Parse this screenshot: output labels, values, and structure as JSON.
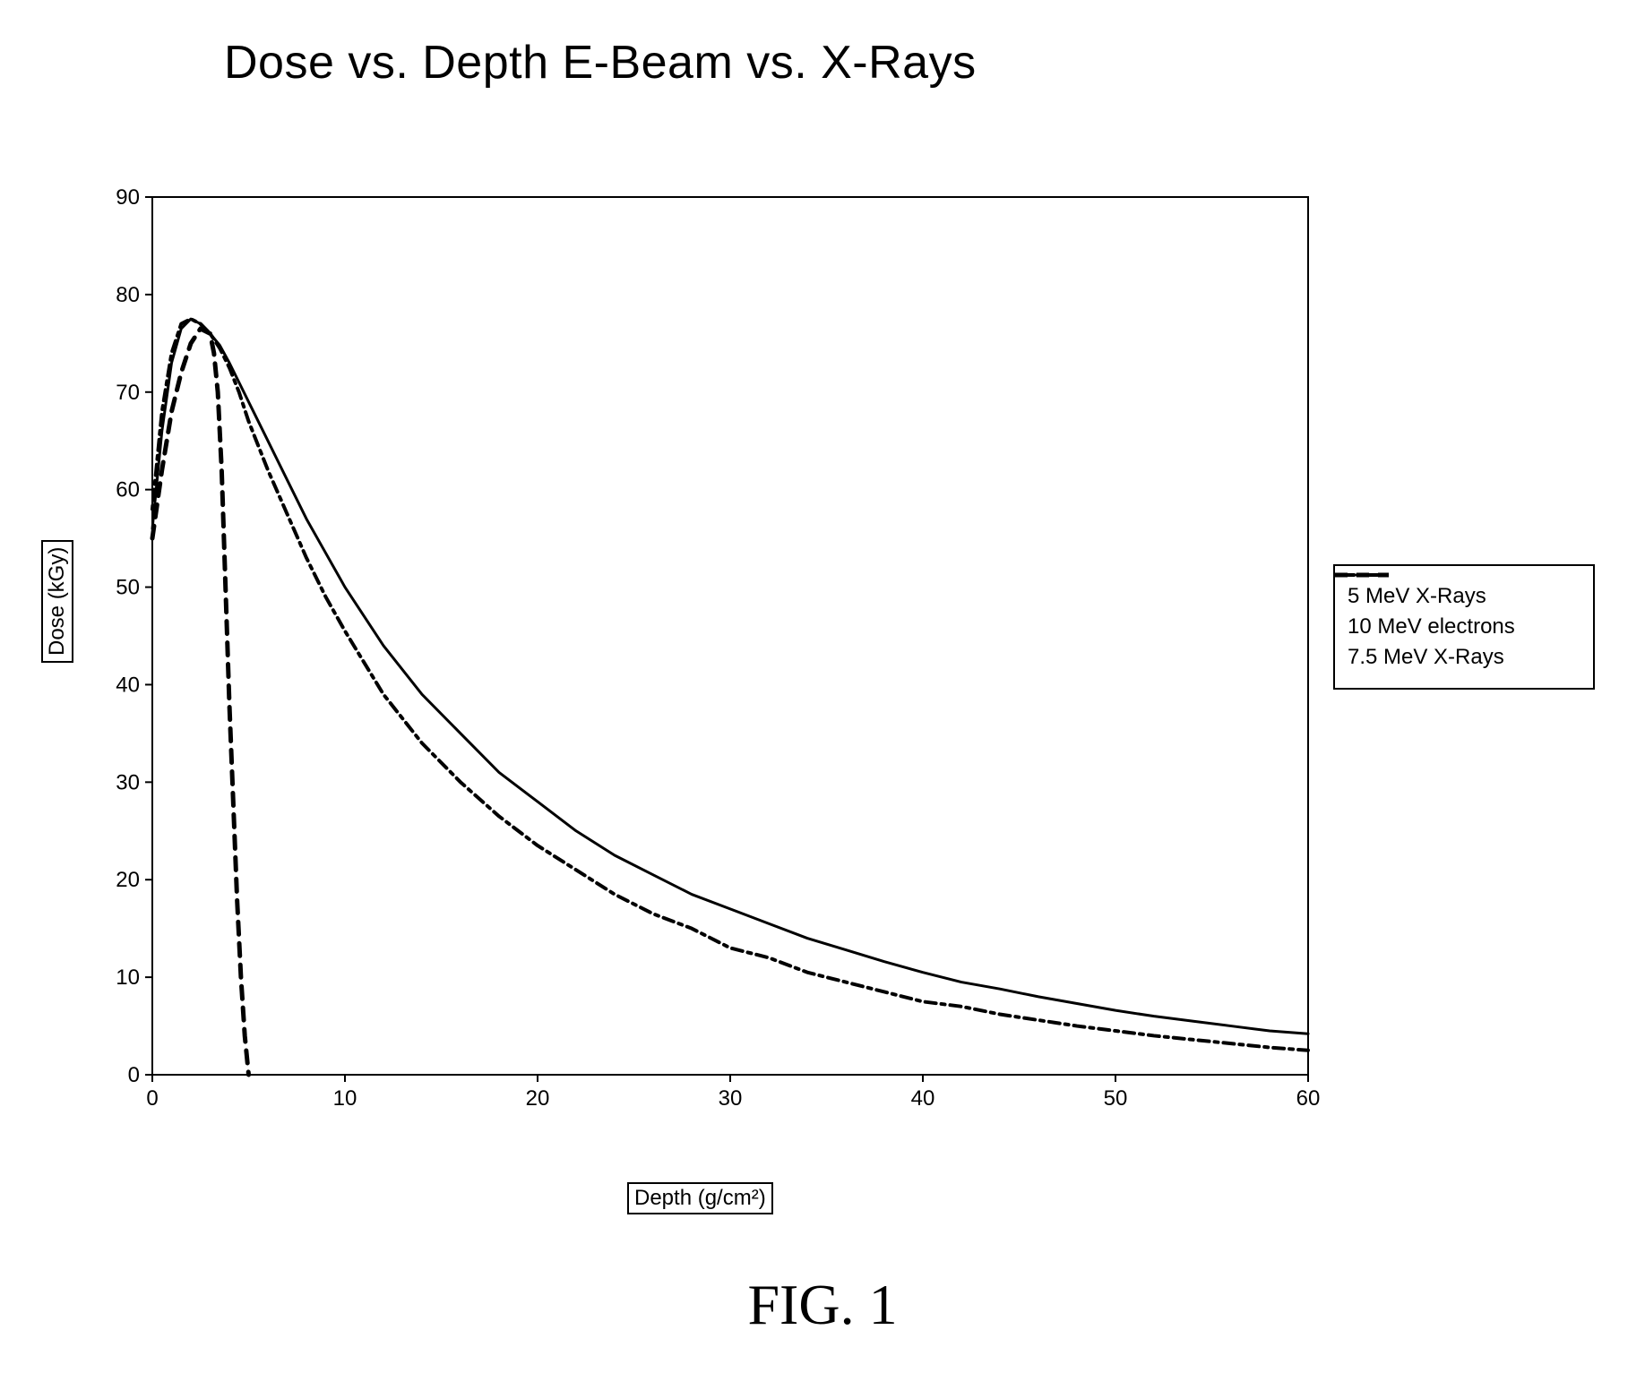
{
  "title": "Dose vs. Depth E-Beam vs. X-Rays",
  "figure_caption": "FIG. 1",
  "chart": {
    "type": "line",
    "background_color": "#ffffff",
    "plot_border_color": "#000000",
    "plot_border_width": 2,
    "font_family": "Arial",
    "tick_fontsize": 24,
    "title_fontsize": 52,
    "caption_fontsize": 64,
    "x_axis": {
      "label": "Depth (g/cm²)",
      "min": 0,
      "max": 60,
      "tick_step": 10,
      "ticks": [
        0,
        10,
        20,
        30,
        40,
        50,
        60
      ],
      "label_boxed": true
    },
    "y_axis": {
      "label": "Dose (kGy)",
      "min": 0,
      "max": 90,
      "tick_step": 10,
      "ticks": [
        0,
        10,
        20,
        30,
        40,
        50,
        60,
        70,
        80,
        90
      ],
      "label_boxed": true
    },
    "grid": false,
    "legend": {
      "position": "right",
      "boxed": true,
      "fontsize": 24,
      "items": [
        {
          "label": "5 MeV X-Rays",
          "series_key": "xray5",
          "dash": "4,6,12,6",
          "width": 4,
          "color": "#000000"
        },
        {
          "label": "10 MeV electrons",
          "series_key": "electrons10",
          "dash": "14,10",
          "width": 5,
          "color": "#000000"
        },
        {
          "label": "7.5 MeV X-Rays",
          "series_key": "xray75",
          "dash": "none",
          "width": 3,
          "color": "#000000"
        }
      ]
    },
    "series": {
      "xray5": {
        "color": "#000000",
        "width": 4,
        "dash": "4,6,12,6",
        "points": [
          [
            0,
            58
          ],
          [
            0.5,
            68
          ],
          [
            1,
            74
          ],
          [
            1.5,
            77
          ],
          [
            2,
            77.5
          ],
          [
            2.5,
            77
          ],
          [
            3,
            76
          ],
          [
            3.5,
            74.5
          ],
          [
            4,
            72.5
          ],
          [
            4.5,
            70
          ],
          [
            5,
            67
          ],
          [
            6,
            62
          ],
          [
            7,
            57.5
          ],
          [
            8,
            53
          ],
          [
            9,
            49
          ],
          [
            10,
            45.5
          ],
          [
            12,
            39
          ],
          [
            14,
            34
          ],
          [
            16,
            30
          ],
          [
            18,
            26.5
          ],
          [
            20,
            23.5
          ],
          [
            22,
            21
          ],
          [
            24,
            18.5
          ],
          [
            26,
            16.5
          ],
          [
            28,
            15
          ],
          [
            30,
            13
          ],
          [
            32,
            12
          ],
          [
            34,
            10.5
          ],
          [
            36,
            9.5
          ],
          [
            38,
            8.5
          ],
          [
            40,
            7.5
          ],
          [
            42,
            7
          ],
          [
            44,
            6.2
          ],
          [
            46,
            5.6
          ],
          [
            48,
            5
          ],
          [
            50,
            4.5
          ],
          [
            52,
            4
          ],
          [
            54,
            3.6
          ],
          [
            56,
            3.2
          ],
          [
            58,
            2.8
          ],
          [
            60,
            2.5
          ]
        ]
      },
      "electrons10": {
        "color": "#000000",
        "width": 5,
        "dash": "14,10",
        "points": [
          [
            0,
            55
          ],
          [
            0.5,
            62
          ],
          [
            1,
            68
          ],
          [
            1.5,
            72
          ],
          [
            2,
            75
          ],
          [
            2.5,
            76.5
          ],
          [
            3,
            76
          ],
          [
            3.2,
            74
          ],
          [
            3.4,
            70
          ],
          [
            3.6,
            62
          ],
          [
            3.8,
            50
          ],
          [
            4,
            38
          ],
          [
            4.2,
            28
          ],
          [
            4.4,
            18
          ],
          [
            4.6,
            10
          ],
          [
            4.8,
            4
          ],
          [
            5,
            0
          ]
        ]
      },
      "xray75": {
        "color": "#000000",
        "width": 3,
        "dash": "none",
        "points": [
          [
            0,
            56
          ],
          [
            0.5,
            66
          ],
          [
            1,
            73
          ],
          [
            1.5,
            76.5
          ],
          [
            2,
            77.5
          ],
          [
            2.5,
            77
          ],
          [
            3,
            76
          ],
          [
            3.5,
            74.8
          ],
          [
            4,
            73
          ],
          [
            4.5,
            71
          ],
          [
            5,
            69
          ],
          [
            6,
            65
          ],
          [
            7,
            61
          ],
          [
            8,
            57
          ],
          [
            9,
            53.5
          ],
          [
            10,
            50
          ],
          [
            12,
            44
          ],
          [
            14,
            39
          ],
          [
            16,
            35
          ],
          [
            18,
            31
          ],
          [
            20,
            28
          ],
          [
            22,
            25
          ],
          [
            24,
            22.5
          ],
          [
            26,
            20.5
          ],
          [
            28,
            18.5
          ],
          [
            30,
            17
          ],
          [
            32,
            15.5
          ],
          [
            34,
            14
          ],
          [
            36,
            12.8
          ],
          [
            38,
            11.6
          ],
          [
            40,
            10.5
          ],
          [
            42,
            9.5
          ],
          [
            44,
            8.8
          ],
          [
            46,
            8
          ],
          [
            48,
            7.3
          ],
          [
            50,
            6.6
          ],
          [
            52,
            6
          ],
          [
            54,
            5.5
          ],
          [
            56,
            5
          ],
          [
            58,
            4.5
          ],
          [
            60,
            4.2
          ]
        ]
      }
    }
  }
}
